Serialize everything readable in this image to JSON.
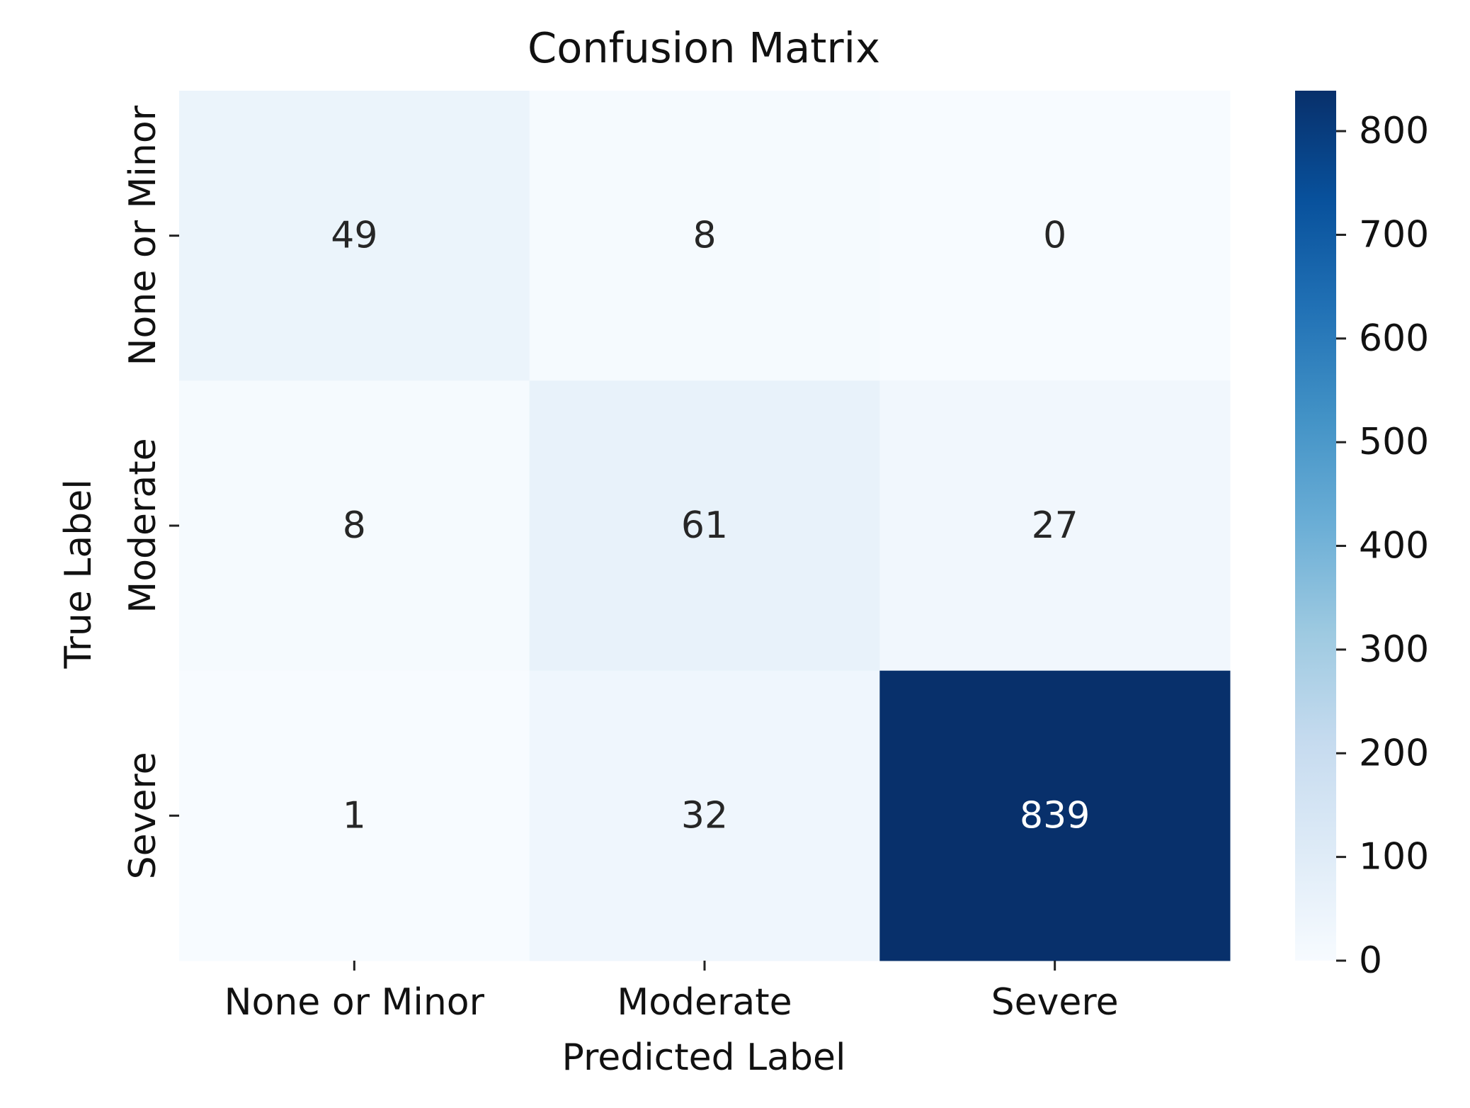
{
  "chart_data": {
    "type": "heatmap",
    "title": "Confusion Matrix",
    "xlabel": "Predicted Label",
    "ylabel": "True Label",
    "x_categories": [
      "None or Minor",
      "Moderate",
      "Severe"
    ],
    "y_categories": [
      "None or Minor",
      "Moderate",
      "Severe"
    ],
    "values": [
      [
        49,
        8,
        0
      ],
      [
        8,
        61,
        27
      ],
      [
        1,
        32,
        839
      ]
    ],
    "colorbar": {
      "min": 0,
      "max": 839,
      "ticks": [
        0,
        100,
        200,
        300,
        400,
        500,
        600,
        700,
        800
      ]
    },
    "colormap": "Blues",
    "grid": false
  }
}
